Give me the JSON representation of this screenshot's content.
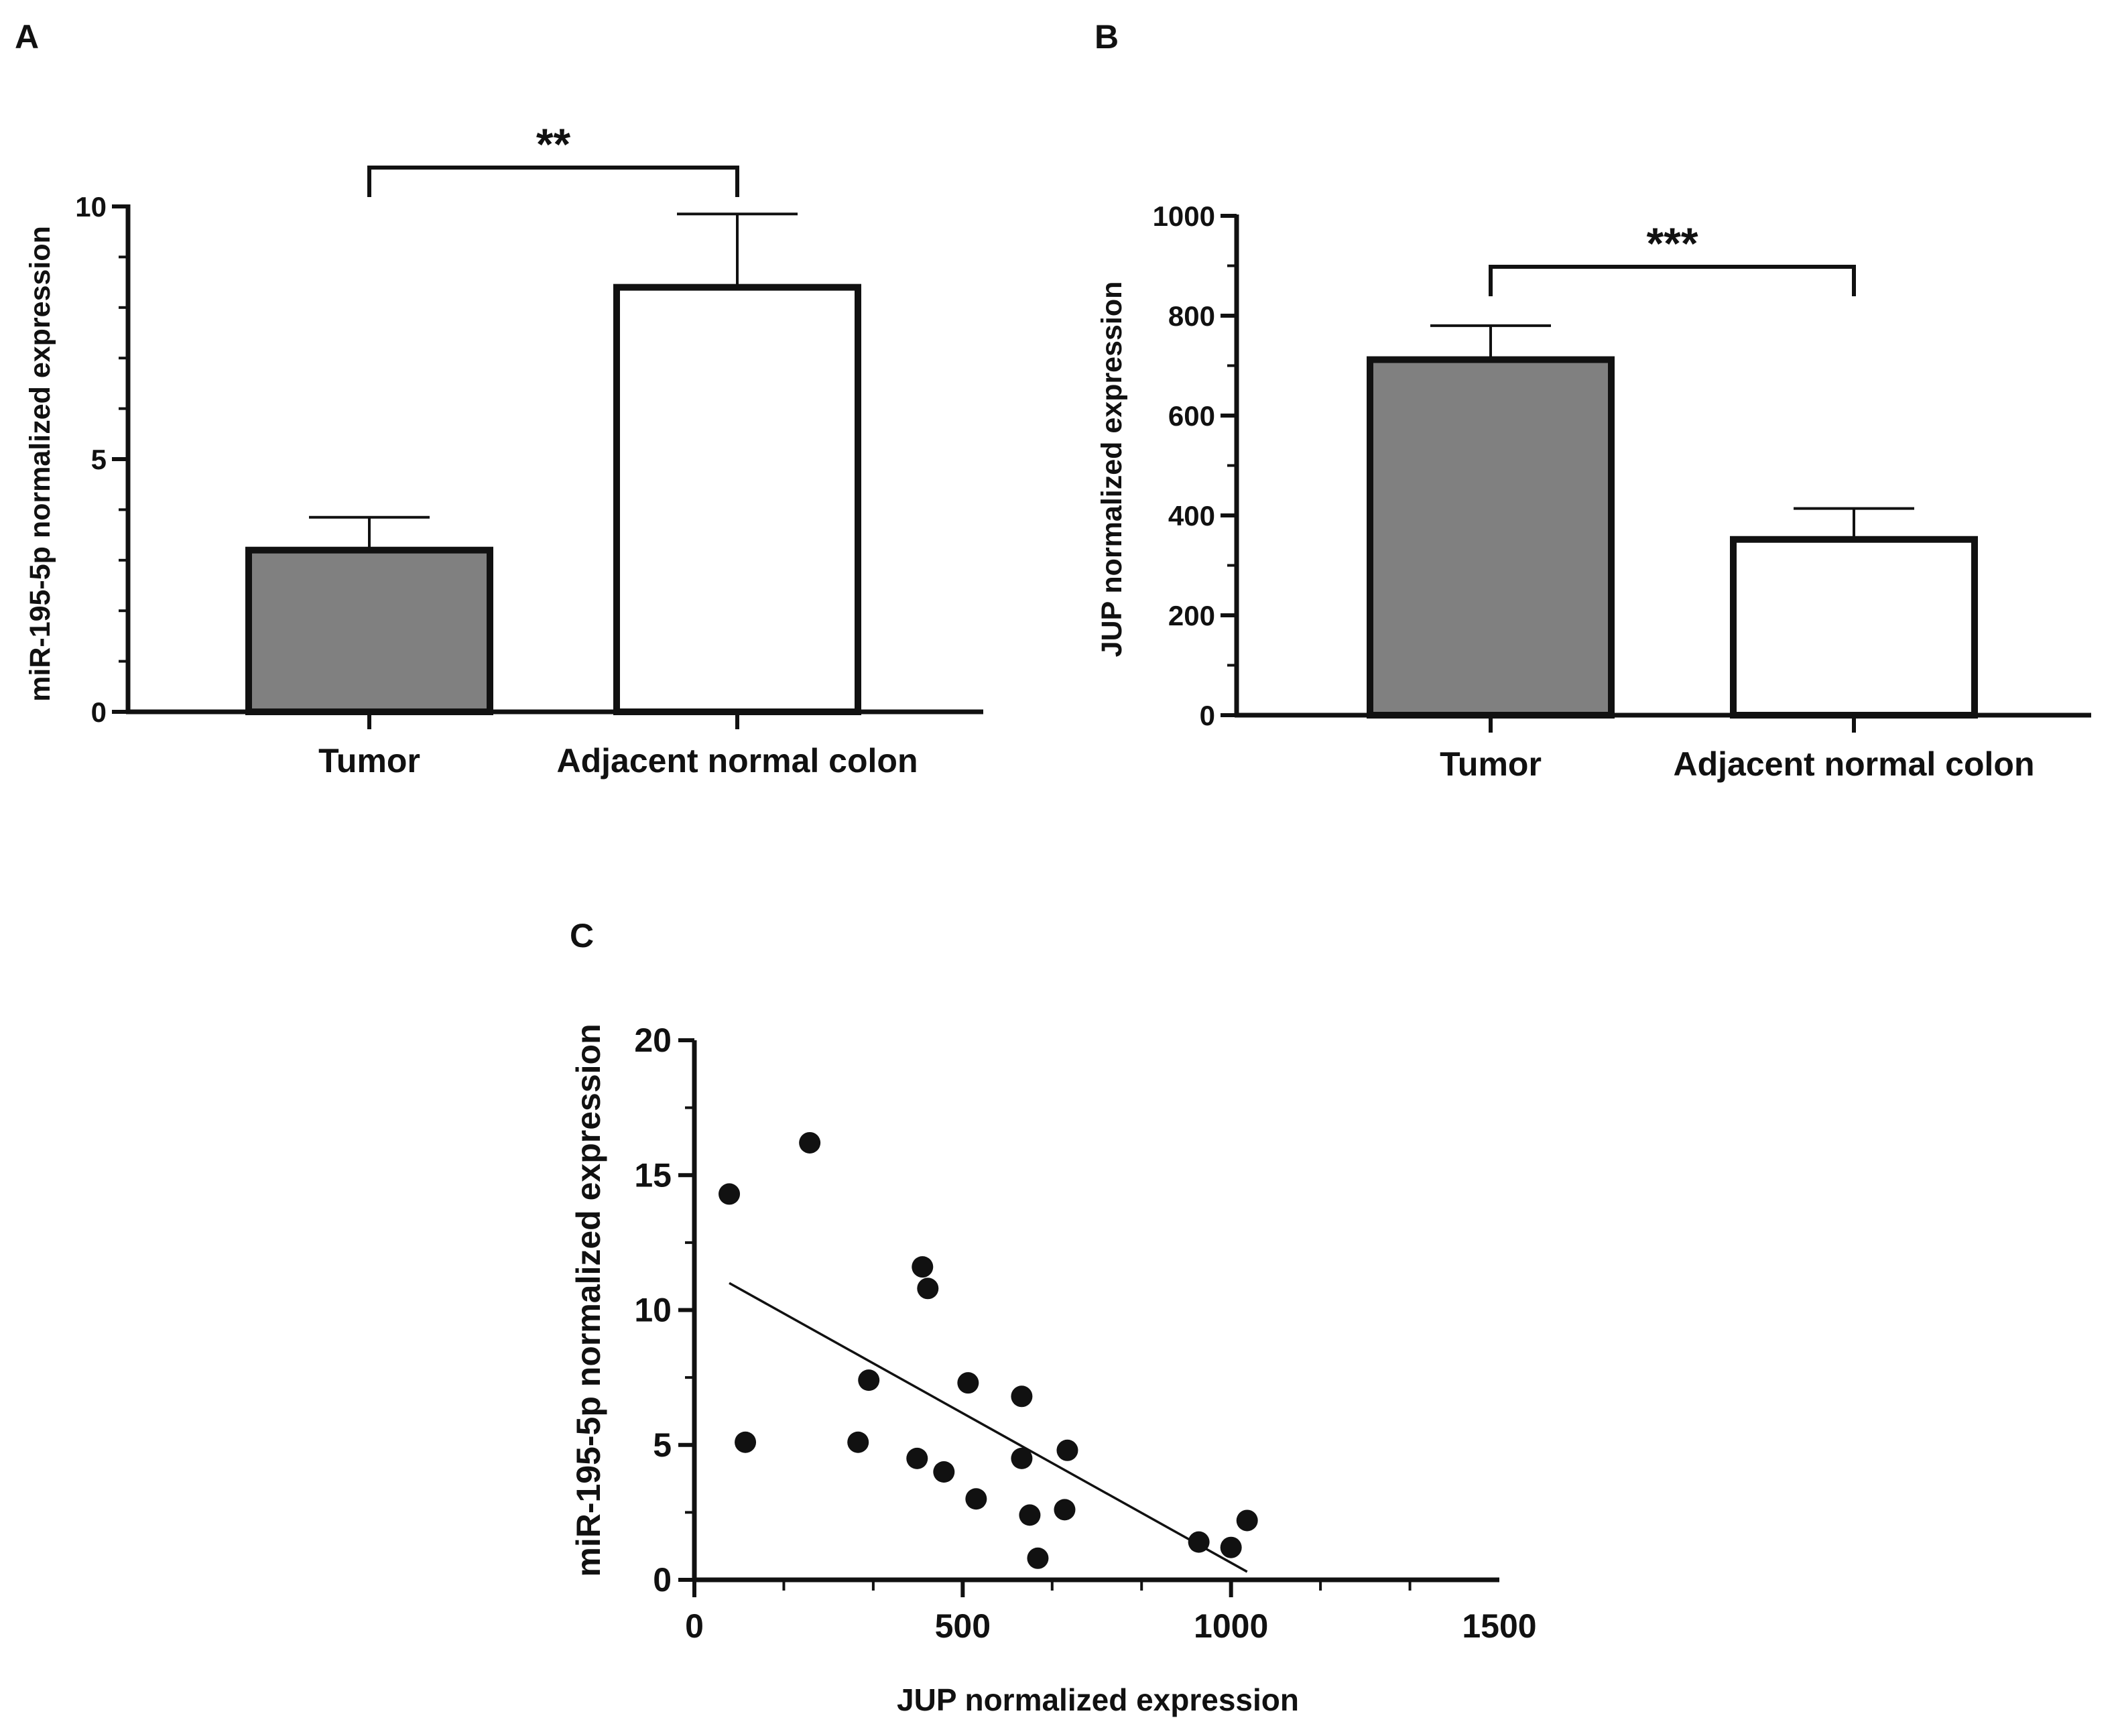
{
  "colors": {
    "tumor": "#808080",
    "normal": "#ffffff",
    "ink": "#111111"
  },
  "chart_data": [
    {
      "panel": "A",
      "type": "bar",
      "categories": [
        "Tumor",
        "Adjacent normal colon"
      ],
      "values": [
        3.2,
        8.4
      ],
      "errors": [
        0.65,
        1.45
      ],
      "ylabel": "miR-195-5p normalized expression",
      "xlabel": "",
      "ylim": [
        0,
        10
      ],
      "yticks": [
        0,
        5,
        10
      ],
      "significance": "**"
    },
    {
      "panel": "B",
      "type": "bar",
      "categories": [
        "Tumor",
        "Adjacent normal colon"
      ],
      "values": [
        712,
        352
      ],
      "errors": [
        68,
        62
      ],
      "ylabel": "JUP normalized expression",
      "xlabel": "",
      "ylim": [
        0,
        1000
      ],
      "yticks": [
        0,
        200,
        400,
        600,
        800,
        1000
      ],
      "significance": "***"
    },
    {
      "panel": "C",
      "type": "scatter",
      "xlabel": "JUP normalized expression",
      "ylabel": "miR-195-5p normalized expression",
      "xlim": [
        0,
        1500
      ],
      "ylim": [
        0,
        20
      ],
      "xticks": [
        0,
        500,
        1000,
        1500
      ],
      "yticks": [
        0,
        5,
        10,
        15,
        20
      ],
      "points": [
        {
          "x": 65,
          "y": 14.3
        },
        {
          "x": 95,
          "y": 5.1
        },
        {
          "x": 215,
          "y": 16.2
        },
        {
          "x": 305,
          "y": 5.1
        },
        {
          "x": 325,
          "y": 7.4
        },
        {
          "x": 415,
          "y": 4.5
        },
        {
          "x": 425,
          "y": 11.6
        },
        {
          "x": 435,
          "y": 10.8
        },
        {
          "x": 465,
          "y": 4.0
        },
        {
          "x": 510,
          "y": 7.3
        },
        {
          "x": 525,
          "y": 3.0
        },
        {
          "x": 610,
          "y": 6.8
        },
        {
          "x": 610,
          "y": 4.5
        },
        {
          "x": 625,
          "y": 2.4
        },
        {
          "x": 640,
          "y": 0.8
        },
        {
          "x": 690,
          "y": 2.6
        },
        {
          "x": 695,
          "y": 4.8
        },
        {
          "x": 940,
          "y": 1.4
        },
        {
          "x": 1000,
          "y": 1.2
        },
        {
          "x": 1030,
          "y": 2.2
        }
      ],
      "fit_line": {
        "x": [
          65,
          1030
        ],
        "y": [
          11.0,
          0.3
        ]
      }
    }
  ]
}
